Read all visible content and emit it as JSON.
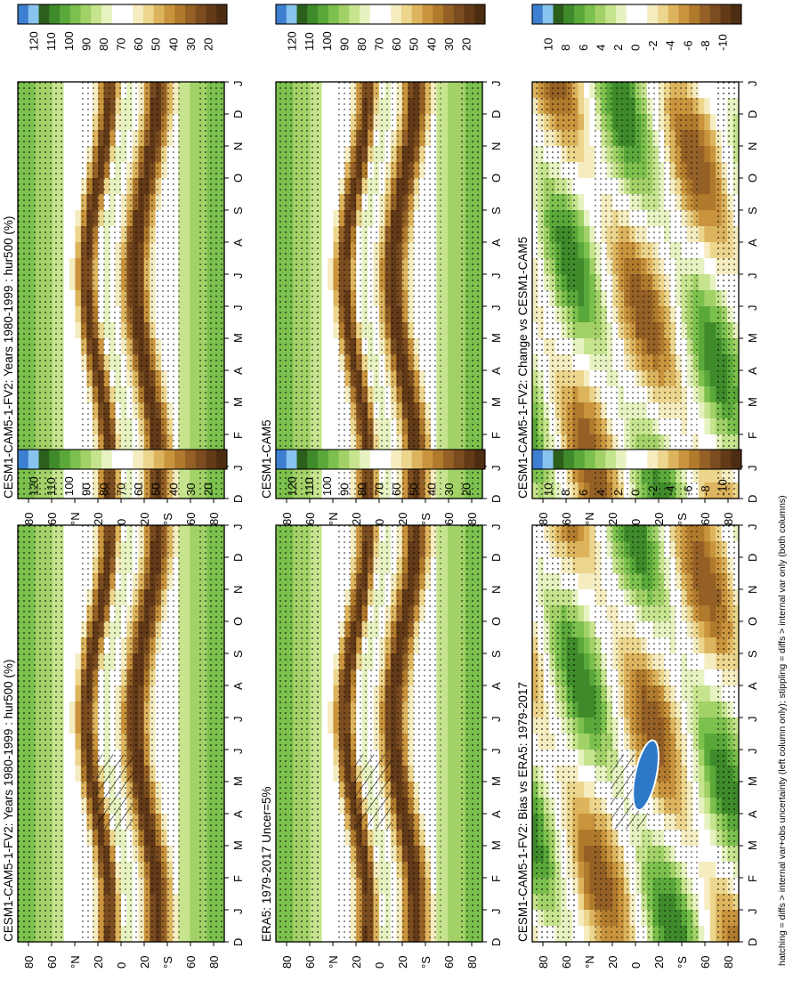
{
  "figure": {
    "footnote": "hatching = diffs > internal var+obs uncertainty (left column only); stippling = diffs > internal var only (both columns)",
    "orientation": "rotated 90 degrees clockwise"
  },
  "colorbars": {
    "absolute": {
      "labels": [
        "120",
        "110",
        "100",
        "90",
        "80",
        "70",
        "60",
        "50",
        "40",
        "30",
        "20"
      ],
      "colors": [
        "#3d7fd0",
        "#88c4ee",
        "#2c5f1c",
        "#3f8a2a",
        "#5aa83a",
        "#7cc04e",
        "#a2d168",
        "#c6e38e",
        "#e6f2c0",
        "#ffffff",
        "#ffffff",
        "#f5ecc0",
        "#ecd58c",
        "#ddb45e",
        "#c9943d",
        "#b07a2d",
        "#946026",
        "#7a4c1f",
        "#623a18",
        "#4d2d12"
      ]
    },
    "difference": {
      "labels": [
        "10",
        "8",
        "6",
        "4",
        "2",
        "0",
        "-2",
        "-4",
        "-6",
        "-8",
        "-10"
      ],
      "colors": [
        "#3d7fd0",
        "#88c4ee",
        "#2c5f1c",
        "#3f8a2a",
        "#5aa83a",
        "#7cc04e",
        "#a2d168",
        "#c6e38e",
        "#e6f2c0",
        "#ffffff",
        "#ffffff",
        "#f5ecc0",
        "#ecd58c",
        "#ddb45e",
        "#c9943d",
        "#b07a2d",
        "#946026",
        "#7a4c1f",
        "#623a18",
        "#4d2d12"
      ]
    }
  },
  "chart_data": [
    {
      "id": "p1",
      "type": "heatmap",
      "title": "CESM1-CAM5-1-FV2: Years 1980-1999 : hur500 (%)",
      "x_categories": [
        "J",
        "F",
        "M",
        "A",
        "M",
        "J",
        "J",
        "A",
        "S",
        "O",
        "N",
        "D",
        "J"
      ],
      "x_axis_label": "D",
      "y_ticks": [
        "80",
        "60",
        "°N",
        "20",
        "0",
        "20",
        "°S",
        "60",
        "80"
      ],
      "ylim": [
        -90,
        90
      ],
      "colorbar": "absolute",
      "hatching": true,
      "stippling": true
    },
    {
      "id": "p2",
      "type": "heatmap",
      "title": "CESM1-CAM5-1-FV2: Years 1980-1999 : hur500 (%)",
      "x_categories": [
        "J",
        "F",
        "M",
        "A",
        "M",
        "J",
        "J",
        "A",
        "S",
        "O",
        "N",
        "D",
        "J"
      ],
      "x_axis_label": "D",
      "y_ticks": [
        "80",
        "60",
        "°N",
        "20",
        "0",
        "20",
        "°S",
        "60",
        "80"
      ],
      "ylim": [
        -90,
        90
      ],
      "colorbar": "absolute",
      "hatching": false,
      "stippling": true
    },
    {
      "id": "p3",
      "type": "heatmap",
      "title": "ERA5: 1979-2017 Uncer=5%",
      "x_categories": [
        "J",
        "F",
        "M",
        "A",
        "M",
        "J",
        "J",
        "A",
        "S",
        "O",
        "N",
        "D",
        "J"
      ],
      "x_axis_label": "D",
      "y_ticks": [
        "80",
        "60",
        "°N",
        "20",
        "0",
        "20",
        "°S",
        "60",
        "80"
      ],
      "ylim": [
        -90,
        90
      ],
      "colorbar": "absolute",
      "hatching": true,
      "stippling": true
    },
    {
      "id": "p4",
      "type": "heatmap",
      "title": "CESM1-CAM5",
      "x_categories": [
        "J",
        "F",
        "M",
        "A",
        "M",
        "J",
        "J",
        "A",
        "S",
        "O",
        "N",
        "D",
        "J"
      ],
      "x_axis_label": "D",
      "y_ticks": [
        "80",
        "60",
        "°N",
        "20",
        "0",
        "20",
        "°S",
        "60",
        "80"
      ],
      "ylim": [
        -90,
        90
      ],
      "colorbar": "absolute",
      "hatching": false,
      "stippling": true
    },
    {
      "id": "p5",
      "type": "heatmap",
      "title": "CESM1-CAM5-1-FV2: Bias vs ERA5: 1979-2017",
      "x_categories": [
        "J",
        "F",
        "M",
        "A",
        "M",
        "J",
        "J",
        "A",
        "S",
        "O",
        "N",
        "D",
        "J"
      ],
      "x_axis_label": "D",
      "y_ticks": [
        "80",
        "60",
        "°N",
        "20",
        "0",
        "20",
        "°S",
        "60",
        "80"
      ],
      "ylim": [
        -90,
        90
      ],
      "colorbar": "difference",
      "hatching": true,
      "stippling": true
    },
    {
      "id": "p6",
      "type": "heatmap",
      "title": "CESM1-CAM5-1-FV2: Change vs CESM1-CAM5",
      "x_categories": [
        "J",
        "F",
        "M",
        "A",
        "M",
        "J",
        "J",
        "A",
        "S",
        "O",
        "N",
        "D",
        "J"
      ],
      "x_axis_label": "D",
      "y_ticks": [
        "80",
        "60",
        "°N",
        "20",
        "0",
        "20",
        "°S",
        "60",
        "80"
      ],
      "ylim": [
        -90,
        90
      ],
      "colorbar": "difference",
      "hatching": false,
      "stippling": true
    }
  ]
}
